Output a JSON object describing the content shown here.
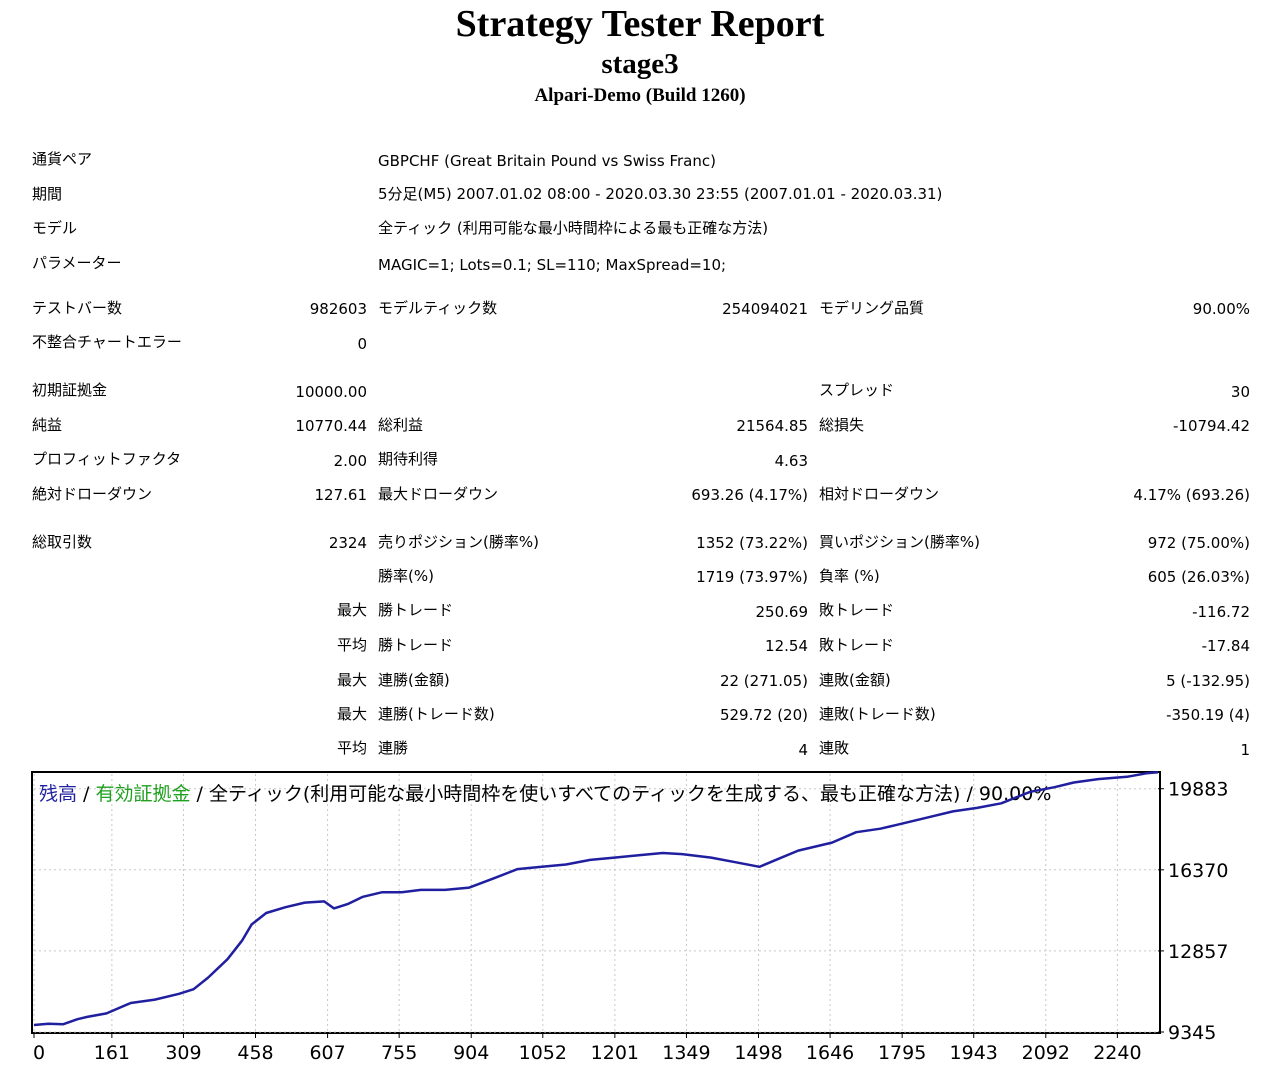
{
  "report": {
    "title": "Strategy Tester Report",
    "expert": "stage3",
    "server": "Alpari-Demo (Build 1260)"
  },
  "settings": [
    {
      "label": "通貨ペア",
      "value": "GBPCHF (Great Britain Pound vs Swiss Franc)"
    },
    {
      "label": "期間",
      "value": "5分足(M5) 2007.01.02 08:00 - 2020.03.30 23:55 (2007.01.01 - 2020.03.31)"
    },
    {
      "label": "モデル",
      "value": "全ティック (利用可能な最小時間枠による最も正確な方法)"
    },
    {
      "label": "パラメーター",
      "value": "MAGIC=1; Lots=0.1; SL=110; MaxSpread=10;"
    }
  ],
  "stats": {
    "test_bars": {
      "label": "テストバー数",
      "value": "982603"
    },
    "model_ticks": {
      "label": "モデルティック数",
      "value": "254094021"
    },
    "modeling_quality": {
      "label": "モデリング品質",
      "value": "90.00%"
    },
    "mismatch_errors": {
      "label": "不整合チャートエラー",
      "value": "0"
    },
    "initial_deposit": {
      "label": "初期証拠金",
      "value": "10000.00"
    },
    "spread": {
      "label": "スプレッド",
      "value": "30"
    },
    "net_profit": {
      "label": "純益",
      "value": "10770.44"
    },
    "gross_profit": {
      "label": "総利益",
      "value": "21564.85"
    },
    "gross_loss": {
      "label": "総損失",
      "value": "-10794.42"
    },
    "profit_factor": {
      "label": "プロフィットファクタ",
      "value": "2.00"
    },
    "expected_payoff": {
      "label": "期待利得",
      "value": "4.63"
    },
    "absolute_drawdown": {
      "label": "絶対ドローダウン",
      "value": "127.61"
    },
    "maximal_drawdown": {
      "label": "最大ドローダウン",
      "value": "693.26 (4.17%)"
    },
    "relative_drawdown": {
      "label": "相対ドローダウン",
      "value": "4.17% (693.26)"
    },
    "total_trades": {
      "label": "総取引数",
      "value": "2324"
    },
    "short_positions": {
      "label": "売りポジション(勝率%)",
      "value": "1352 (73.22%)"
    },
    "long_positions": {
      "label": "買いポジション(勝率%)",
      "value": "972 (75.00%)"
    },
    "win_rate": {
      "label": "勝率(%)",
      "value": "1719 (73.97%)"
    },
    "loss_rate": {
      "label": "負率 (%)",
      "value": "605 (26.03%)"
    },
    "largest_win": {
      "prefix": "最大",
      "label": "勝トレード",
      "value": "250.69"
    },
    "largest_loss": {
      "label": "敗トレード",
      "value": "-116.72"
    },
    "average_win": {
      "prefix": "平均",
      "label": "勝トレード",
      "value": "12.54"
    },
    "average_loss": {
      "label": "敗トレード",
      "value": "-17.84"
    },
    "max_consec_wins_money": {
      "prefix": "最大",
      "label": "連勝(金額)",
      "value": "22 (271.05)"
    },
    "max_consec_losses_money": {
      "label": "連敗(金額)",
      "value": "5 (-132.95)"
    },
    "max_consec_wins_trades": {
      "prefix": "最大",
      "label": "連勝(トレード数)",
      "value": "529.72 (20)"
    },
    "max_consec_losses_trades": {
      "label": "連敗(トレード数)",
      "value": "-350.19 (4)"
    },
    "avg_consec_wins": {
      "prefix": "平均",
      "label": "連勝",
      "value": "4"
    },
    "avg_consec_losses": {
      "label": "連敗",
      "value": "1"
    }
  },
  "chart_data": {
    "type": "line",
    "legend": {
      "balance": "残高",
      "sep1": " / ",
      "equity": "有効証拠金",
      "rest": " / 全ティック(利用可能な最小時間枠を使いすべてのティックを生成する、最も正確な方法) / 90.00%"
    },
    "colors": {
      "balance": "#1f1fa0",
      "equity": "#1fa01f",
      "frame": "#000000"
    },
    "x_ticks": [
      "0",
      "161",
      "309",
      "458",
      "607",
      "755",
      "904",
      "1052",
      "1201",
      "1349",
      "1498",
      "1646",
      "1795",
      "1943",
      "2092",
      "2240"
    ],
    "y_ticks": [
      "19883",
      "16370",
      "12857",
      "9345"
    ],
    "xlim": [
      0,
      2324
    ],
    "ylim": [
      9345,
      20520
    ],
    "series": [
      {
        "name": "残高",
        "x": [
          0,
          30,
          60,
          90,
          110,
          150,
          200,
          250,
          300,
          330,
          360,
          400,
          430,
          450,
          480,
          520,
          560,
          600,
          620,
          650,
          680,
          720,
          760,
          800,
          850,
          900,
          950,
          1000,
          1050,
          1100,
          1150,
          1200,
          1250,
          1300,
          1340,
          1400,
          1450,
          1500,
          1540,
          1580,
          1650,
          1700,
          1750,
          1780,
          1850,
          1900,
          1950,
          2000,
          2030,
          2060,
          2110,
          2150,
          2200,
          2260,
          2300,
          2324
        ],
        "y": [
          9650,
          9700,
          9680,
          9900,
          10000,
          10150,
          10600,
          10750,
          11000,
          11200,
          11700,
          12500,
          13300,
          14000,
          14500,
          14750,
          14950,
          15000,
          14700,
          14900,
          15200,
          15400,
          15400,
          15500,
          15500,
          15600,
          16000,
          16400,
          16500,
          16600,
          16800,
          16900,
          17000,
          17100,
          17050,
          16900,
          16700,
          16500,
          16850,
          17200,
          17550,
          18000,
          18150,
          18300,
          18650,
          18900,
          19050,
          19250,
          19500,
          19750,
          19950,
          20150,
          20300,
          20400,
          20550,
          20600
        ]
      }
    ]
  }
}
